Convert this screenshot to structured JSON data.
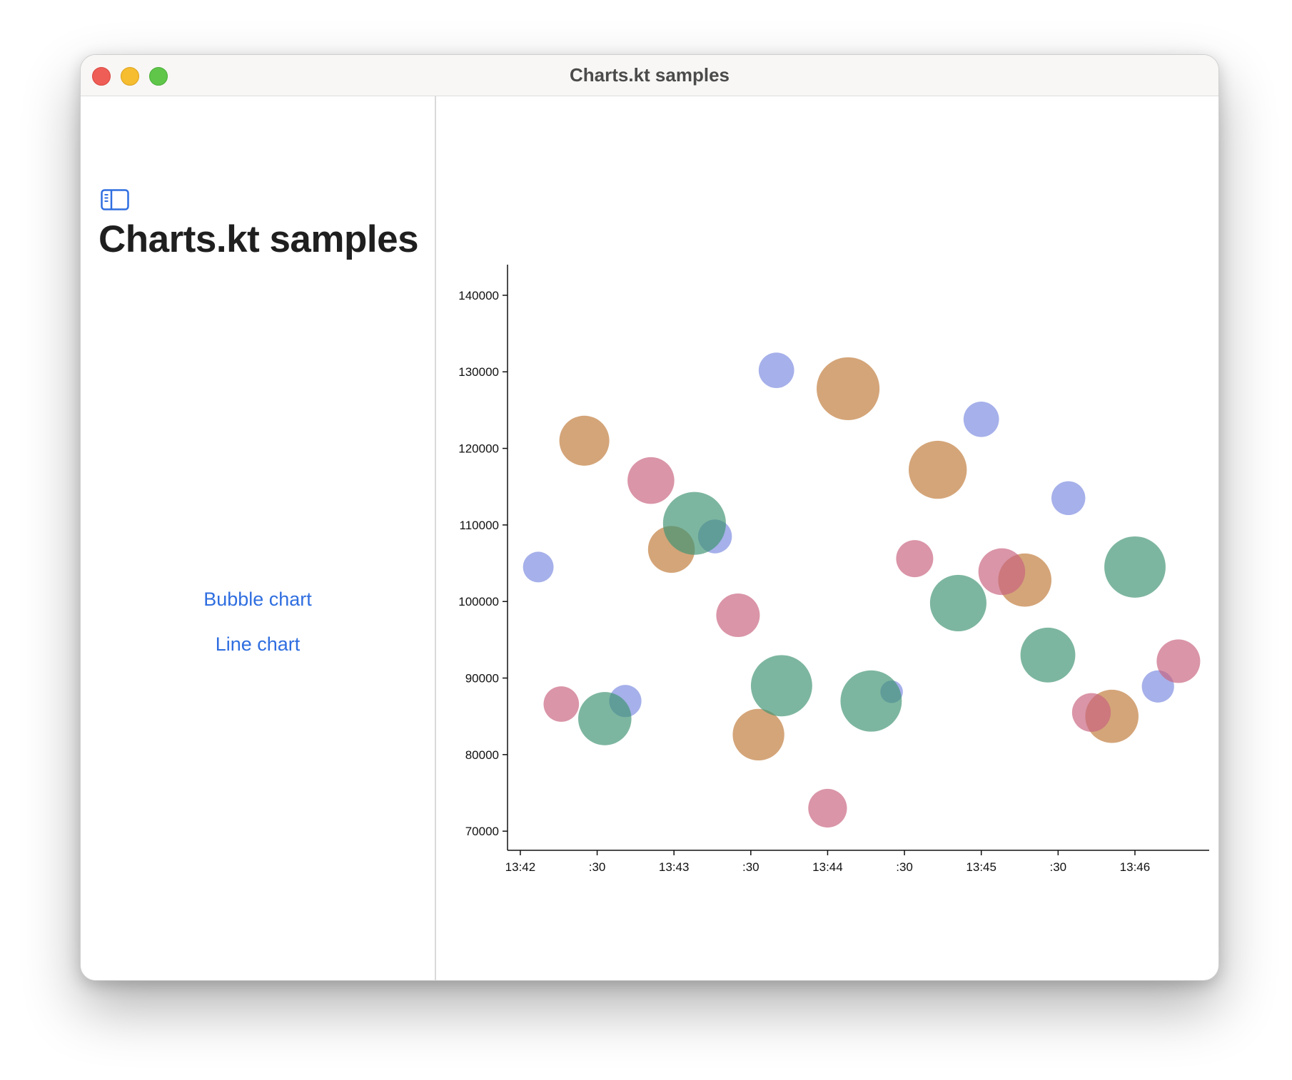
{
  "window": {
    "title": "Charts.kt samples"
  },
  "sidebar": {
    "toggle_icon": "sidebar-left-icon",
    "title": "Charts.kt samples",
    "links": [
      {
        "label": "Bubble chart"
      },
      {
        "label": "Line chart"
      }
    ]
  },
  "colors": {
    "link": "#2f6ee0",
    "series_blue": "#7c8be0",
    "series_orange": "#c07a3a",
    "series_pink": "#c8637f",
    "series_green": "#3f9473"
  },
  "chart_data": {
    "type": "scatter",
    "title": "",
    "xlabel": "",
    "ylabel": "",
    "x_ticks": [
      "13:42",
      ":30",
      "13:43",
      ":30",
      "13:44",
      ":30",
      "13:45",
      ":30",
      "13:46"
    ],
    "x_tick_seconds": [
      0,
      30,
      60,
      90,
      120,
      150,
      180,
      210,
      240
    ],
    "xlim_seconds": [
      -5,
      269
    ],
    "y_ticks": [
      "70000",
      "80000",
      "90000",
      "100000",
      "110000",
      "120000",
      "130000",
      "140000"
    ],
    "ylim": [
      67500,
      144000
    ],
    "bubble": true,
    "grid": false,
    "series": [
      {
        "color": "#7c8be0",
        "points": [
          {
            "time": "13:42:07",
            "y": 104500,
            "size": 19
          },
          {
            "time": "13:42:41",
            "y": 87000,
            "size": 20
          },
          {
            "time": "13:43:16",
            "y": 108500,
            "size": 21
          },
          {
            "time": "13:43:40",
            "y": 130200,
            "size": 22
          },
          {
            "time": "13:44:25",
            "y": 88200,
            "size": 14
          },
          {
            "time": "13:45:00",
            "y": 123800,
            "size": 22
          },
          {
            "time": "13:45:34",
            "y": 113500,
            "size": 21
          },
          {
            "time": "13:46:09",
            "y": 88900,
            "size": 20
          }
        ]
      },
      {
        "color": "#c07a3a",
        "points": [
          {
            "time": "13:42:25",
            "y": 121000,
            "size": 31
          },
          {
            "time": "13:42:59",
            "y": 106800,
            "size": 29
          },
          {
            "time": "13:43:33",
            "y": 82600,
            "size": 32
          },
          {
            "time": "13:44:08",
            "y": 127800,
            "size": 39
          },
          {
            "time": "13:44:43",
            "y": 117200,
            "size": 36
          },
          {
            "time": "13:45:17",
            "y": 102800,
            "size": 33
          },
          {
            "time": "13:45:51",
            "y": 85000,
            "size": 33
          }
        ]
      },
      {
        "color": "#c8637f",
        "points": [
          {
            "time": "13:42:16",
            "y": 86600,
            "size": 22
          },
          {
            "time": "13:42:51",
            "y": 115800,
            "size": 29
          },
          {
            "time": "13:43:25",
            "y": 98200,
            "size": 27
          },
          {
            "time": "13:44:00",
            "y": 73000,
            "size": 24
          },
          {
            "time": "13:44:34",
            "y": 105600,
            "size": 23
          },
          {
            "time": "13:45:08",
            "y": 103900,
            "size": 29
          },
          {
            "time": "13:45:43",
            "y": 85500,
            "size": 24
          },
          {
            "time": "13:46:17",
            "y": 92200,
            "size": 27
          }
        ]
      },
      {
        "color": "#3f9473",
        "points": [
          {
            "time": "13:42:33",
            "y": 84700,
            "size": 33
          },
          {
            "time": "13:43:08",
            "y": 110200,
            "size": 39
          },
          {
            "time": "13:43:42",
            "y": 89000,
            "size": 38
          },
          {
            "time": "13:44:17",
            "y": 87000,
            "size": 38
          },
          {
            "time": "13:44:51",
            "y": 99800,
            "size": 35
          },
          {
            "time": "13:45:26",
            "y": 93000,
            "size": 34
          },
          {
            "time": "13:46:00",
            "y": 104500,
            "size": 38
          }
        ]
      }
    ]
  }
}
